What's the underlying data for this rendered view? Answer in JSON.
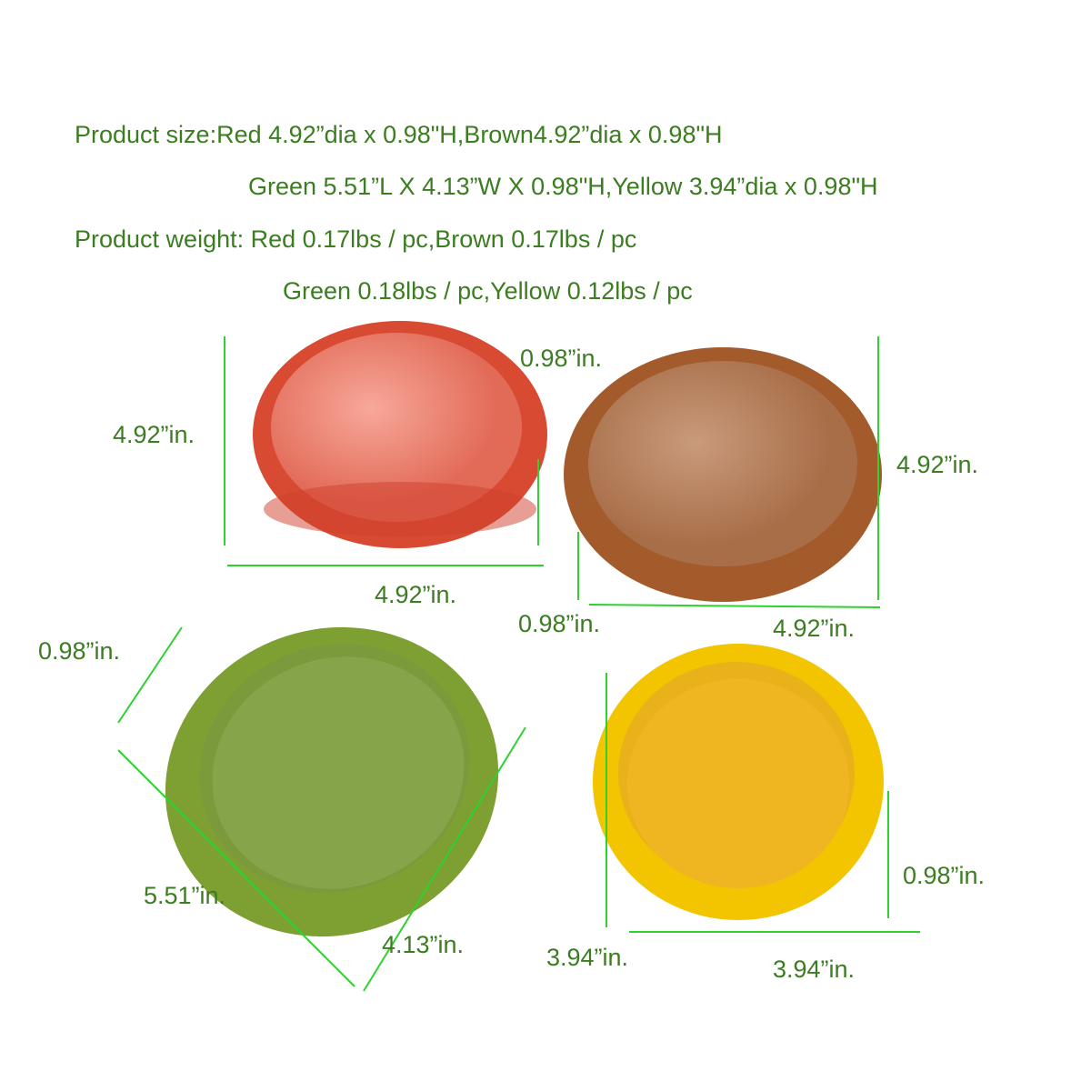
{
  "header": {
    "lines": [
      "Product size:Red 4.92”dia x 0.98\"H,Brown4.92”dia x 0.98\"H",
      "Green 5.51”L X 4.13”W X 0.98\"H,Yellow 3.94”dia x 0.98\"H",
      "Product weight: Red 0.17lbs / pc,Brown 0.17lbs / pc",
      "Green 0.18lbs / pc,Yellow 0.12lbs / pc"
    ]
  },
  "labels": {
    "red": [
      "0.98”in.",
      "4.92”in.",
      "4.92”in."
    ],
    "brown": [
      "4.92”in.",
      "0.98”in.",
      "4.92”in."
    ],
    "green": [
      "0.98”in.",
      "5.51”in.",
      "4.13”in."
    ],
    "yellow": [
      "0.98”in.",
      "3.94”in.",
      "3.94”in."
    ]
  }
}
